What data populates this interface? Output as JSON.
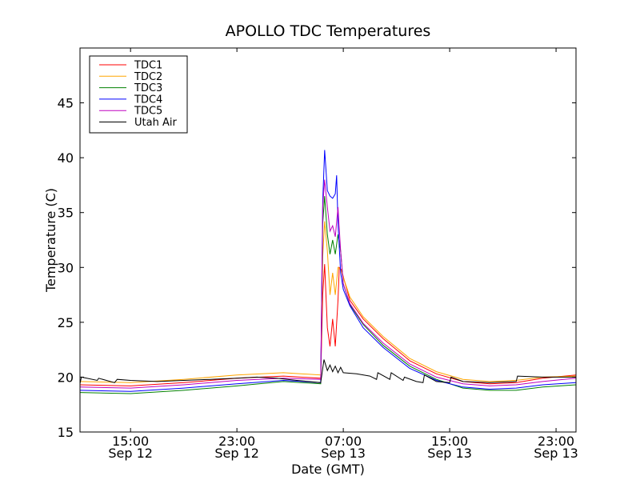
{
  "chart_data": {
    "type": "line",
    "title": "APOLLO TDC Temperatures",
    "xlabel": "Date (GMT)",
    "ylabel": "Temperature (C)",
    "ylim": [
      15,
      50
    ],
    "xlim_hours": [
      11.2,
      48.5
    ],
    "x_unit": "hours since Sep 12 00:00 GMT",
    "yticks": [
      15,
      20,
      25,
      30,
      35,
      40,
      45
    ],
    "xticks": [
      {
        "x": 15,
        "line1": "15:00",
        "line2": "Sep 12"
      },
      {
        "x": 23,
        "line1": "23:00",
        "line2": "Sep 12"
      },
      {
        "x": 31,
        "line1": "07:00",
        "line2": "Sep 13"
      },
      {
        "x": 39,
        "line1": "15:00",
        "line2": "Sep 13"
      },
      {
        "x": 47,
        "line1": "23:00",
        "line2": "Sep 13"
      }
    ],
    "legend_position": "top-left",
    "series": [
      {
        "name": "TDC1",
        "color": "#ff0000",
        "points": [
          [
            11.2,
            19.3
          ],
          [
            15,
            19.2
          ],
          [
            19,
            19.5
          ],
          [
            23,
            19.9
          ],
          [
            26.5,
            20.1
          ],
          [
            29.3,
            19.9
          ],
          [
            29.45,
            27.5
          ],
          [
            29.6,
            30.3
          ],
          [
            29.8,
            24.5
          ],
          [
            30.0,
            22.8
          ],
          [
            30.2,
            25.3
          ],
          [
            30.4,
            22.8
          ],
          [
            30.6,
            27
          ],
          [
            30.7,
            30
          ],
          [
            30.85,
            29.8
          ],
          [
            31.5,
            27
          ],
          [
            32.5,
            25.3
          ],
          [
            34,
            23.5
          ],
          [
            36,
            21.5
          ],
          [
            38,
            20.3
          ],
          [
            40,
            19.6
          ],
          [
            42,
            19.4
          ],
          [
            44,
            19.5
          ],
          [
            46,
            19.9
          ],
          [
            48.5,
            20.2
          ]
        ]
      },
      {
        "name": "TDC2",
        "color": "#ffa500",
        "points": [
          [
            11.2,
            19.6
          ],
          [
            15,
            19.5
          ],
          [
            19,
            19.8
          ],
          [
            23,
            20.2
          ],
          [
            26.5,
            20.4
          ],
          [
            29.3,
            20.2
          ],
          [
            29.45,
            31
          ],
          [
            29.6,
            34.2
          ],
          [
            29.8,
            31.5
          ],
          [
            30.0,
            27.5
          ],
          [
            30.2,
            29.5
          ],
          [
            30.4,
            27.5
          ],
          [
            30.6,
            30
          ],
          [
            30.8,
            29.8
          ],
          [
            31.5,
            27.3
          ],
          [
            32.5,
            25.5
          ],
          [
            34,
            23.7
          ],
          [
            36,
            21.7
          ],
          [
            38,
            20.5
          ],
          [
            40,
            19.8
          ],
          [
            42,
            19.6
          ],
          [
            44,
            19.7
          ],
          [
            46,
            20.0
          ],
          [
            48.5,
            20.1
          ]
        ]
      },
      {
        "name": "TDC3",
        "color": "#008000",
        "points": [
          [
            11.2,
            18.6
          ],
          [
            15,
            18.5
          ],
          [
            19,
            18.8
          ],
          [
            23,
            19.2
          ],
          [
            26.5,
            19.6
          ],
          [
            29.3,
            19.4
          ],
          [
            29.45,
            34
          ],
          [
            29.6,
            36.5
          ],
          [
            29.8,
            33
          ],
          [
            30.0,
            31.2
          ],
          [
            30.2,
            32.5
          ],
          [
            30.4,
            31.2
          ],
          [
            30.6,
            33
          ],
          [
            30.8,
            31.5
          ],
          [
            31.0,
            28.5
          ],
          [
            31.5,
            26.6
          ],
          [
            32.5,
            24.8
          ],
          [
            34,
            22.9
          ],
          [
            36,
            21
          ],
          [
            38,
            19.8
          ],
          [
            40,
            19
          ],
          [
            42,
            18.8
          ],
          [
            44,
            18.8
          ],
          [
            46,
            19.1
          ],
          [
            48.5,
            19.3
          ]
        ]
      },
      {
        "name": "TDC4",
        "color": "#0000ff",
        "points": [
          [
            11.2,
            18.8
          ],
          [
            15,
            18.7
          ],
          [
            19,
            19.0
          ],
          [
            23,
            19.4
          ],
          [
            26.5,
            19.7
          ],
          [
            29.3,
            19.5
          ],
          [
            29.45,
            36
          ],
          [
            29.6,
            40.7
          ],
          [
            29.8,
            37
          ],
          [
            30.0,
            36.5
          ],
          [
            30.2,
            36.3
          ],
          [
            30.4,
            36.7
          ],
          [
            30.5,
            38.4
          ],
          [
            30.6,
            34
          ],
          [
            30.8,
            29.5
          ],
          [
            31.0,
            28
          ],
          [
            31.5,
            26.5
          ],
          [
            32.5,
            24.5
          ],
          [
            34,
            22.7
          ],
          [
            36,
            20.8
          ],
          [
            38,
            19.7
          ],
          [
            40,
            19.1
          ],
          [
            42,
            18.9
          ],
          [
            44,
            19.0
          ],
          [
            46,
            19.3
          ],
          [
            48.5,
            19.5
          ]
        ]
      },
      {
        "name": "TDC5",
        "color": "#bf00bf",
        "points": [
          [
            11.2,
            19.1
          ],
          [
            15,
            19.0
          ],
          [
            19,
            19.3
          ],
          [
            23,
            19.7
          ],
          [
            26.5,
            19.9
          ],
          [
            29.3,
            19.8
          ],
          [
            29.45,
            35.5
          ],
          [
            29.6,
            38
          ],
          [
            29.8,
            35.5
          ],
          [
            30.0,
            33.3
          ],
          [
            30.2,
            33.8
          ],
          [
            30.4,
            32.8
          ],
          [
            30.6,
            35.5
          ],
          [
            30.8,
            31.5
          ],
          [
            31.0,
            28.5
          ],
          [
            31.5,
            26.7
          ],
          [
            32.5,
            24.9
          ],
          [
            34,
            23.1
          ],
          [
            36,
            21.2
          ],
          [
            38,
            20
          ],
          [
            40,
            19.4
          ],
          [
            42,
            19.2
          ],
          [
            44,
            19.3
          ],
          [
            46,
            19.6
          ],
          [
            48.5,
            19.9
          ]
        ]
      },
      {
        "name": "Utah Air",
        "color": "#000000",
        "points": [
          [
            11.2,
            19.4
          ],
          [
            11.3,
            20.0
          ],
          [
            12.5,
            19.7
          ],
          [
            12.6,
            19.9
          ],
          [
            13.8,
            19.5
          ],
          [
            14.0,
            19.8
          ],
          [
            15,
            19.7
          ],
          [
            17,
            19.6
          ],
          [
            19,
            19.7
          ],
          [
            21,
            19.8
          ],
          [
            23,
            19.9
          ],
          [
            24.5,
            20.0
          ],
          [
            26,
            19.9
          ],
          [
            27.5,
            19.7
          ],
          [
            29.3,
            19.5
          ],
          [
            29.45,
            20.8
          ],
          [
            29.55,
            21.6
          ],
          [
            29.8,
            20.6
          ],
          [
            30.0,
            21.1
          ],
          [
            30.2,
            20.5
          ],
          [
            30.4,
            21.0
          ],
          [
            30.6,
            20.4
          ],
          [
            30.8,
            20.9
          ],
          [
            31.0,
            20.4
          ],
          [
            32,
            20.3
          ],
          [
            33,
            20.1
          ],
          [
            33.5,
            19.8
          ],
          [
            33.6,
            20.4
          ],
          [
            34.5,
            19.8
          ],
          [
            34.6,
            20.4
          ],
          [
            35.5,
            19.7
          ],
          [
            35.6,
            20.0
          ],
          [
            36.5,
            19.6
          ],
          [
            37,
            19.5
          ],
          [
            37.1,
            20.2
          ],
          [
            38,
            19.6
          ],
          [
            39,
            19.5
          ],
          [
            39.1,
            20.0
          ],
          [
            40,
            19.6
          ],
          [
            42,
            19.5
          ],
          [
            44,
            19.6
          ],
          [
            44.1,
            20.1
          ],
          [
            46,
            20.0
          ],
          [
            48.5,
            20.0
          ]
        ]
      }
    ]
  }
}
